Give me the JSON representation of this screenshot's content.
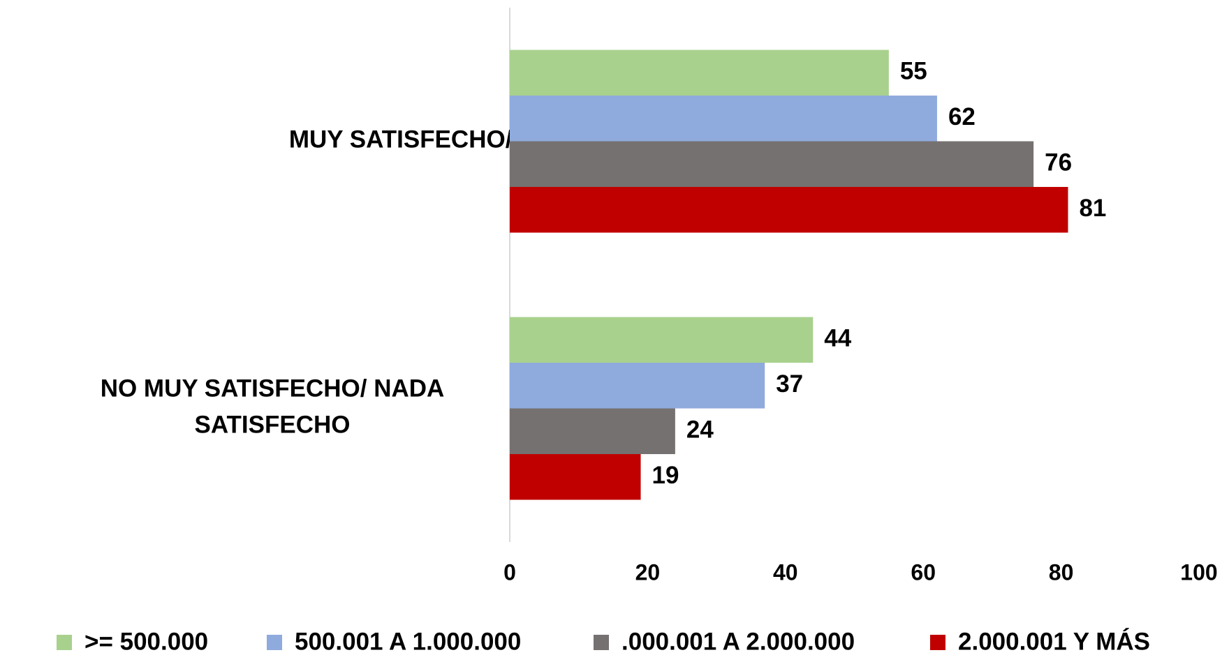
{
  "chart_data": {
    "type": "hbar",
    "categories": [
      "MUY SATISFECHO/ SATISFECHO",
      "NO MUY SATISFECHO/ NADA SATISFECHO"
    ],
    "series": [
      {
        "name": ">= 500.000",
        "color": "#a9d18e",
        "values": [
          55,
          44
        ]
      },
      {
        "name": "500.001 A 1.000.000",
        "color": "#8faadc",
        "values": [
          62,
          37
        ]
      },
      {
        "name": ".000.001 A 2.000.000",
        "color": "#767171",
        "values": [
          76,
          24
        ]
      },
      {
        "name": "2.000.001 Y MÁS",
        "color": "#c00000",
        "values": [
          81,
          19
        ]
      }
    ],
    "xlim": [
      0,
      100
    ],
    "xticks": [
      0,
      20,
      40,
      60,
      80,
      100
    ],
    "legend": "bottom"
  }
}
